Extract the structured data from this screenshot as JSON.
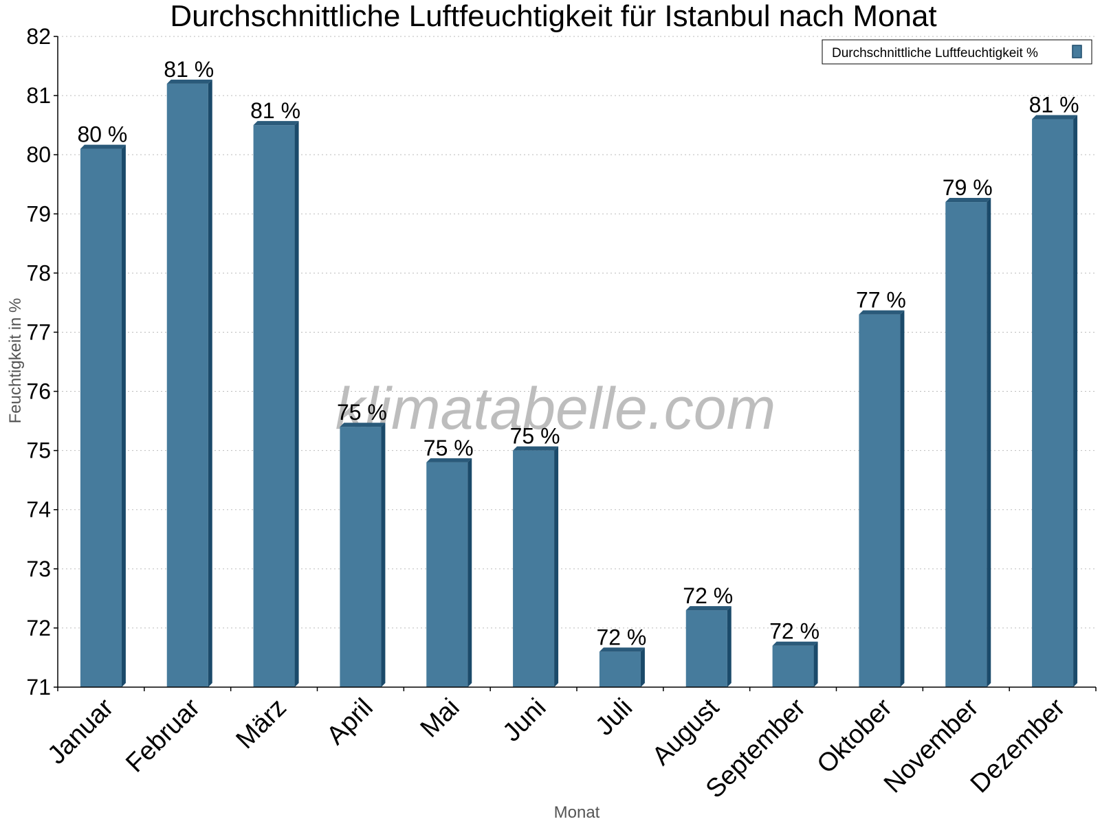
{
  "chart_data": {
    "type": "bar",
    "title": "Durchschnittliche Luftfeuchtigkeit für Istanbul nach Monat",
    "xlabel": "Monat",
    "ylabel": "Feuchtigkeit in %",
    "categories": [
      "Januar",
      "Februar",
      "März",
      "April",
      "Mai",
      "Juni",
      "Juli",
      "August",
      "September",
      "Oktober",
      "November",
      "Dezember"
    ],
    "series": [
      {
        "name": "Durchschnittliche Luftfeuchtigkeit %",
        "values": [
          80.1,
          81.2,
          80.5,
          75.4,
          74.8,
          75.0,
          71.6,
          72.3,
          71.7,
          77.3,
          79.2,
          80.6
        ],
        "data_labels": [
          "80 %",
          "81 %",
          "81 %",
          "75 %",
          "75 %",
          "75 %",
          "72 %",
          "72 %",
          "72 %",
          "77 %",
          "79 %",
          "81 %"
        ],
        "color": "#467b9c"
      }
    ],
    "ylim": [
      71,
      82
    ],
    "yticks": [
      "71",
      "72",
      "73",
      "74",
      "75",
      "76",
      "77",
      "78",
      "79",
      "80",
      "81",
      "82"
    ],
    "grid": true,
    "legend": "top-right"
  },
  "watermark": "klimatabelle.com",
  "colors": {
    "bar_front": "#467b9c",
    "bar_side": "#1b4a6a",
    "bar_top": "#2a5a7a",
    "grid": "#bbbbbb",
    "axis_title": "#555555"
  }
}
